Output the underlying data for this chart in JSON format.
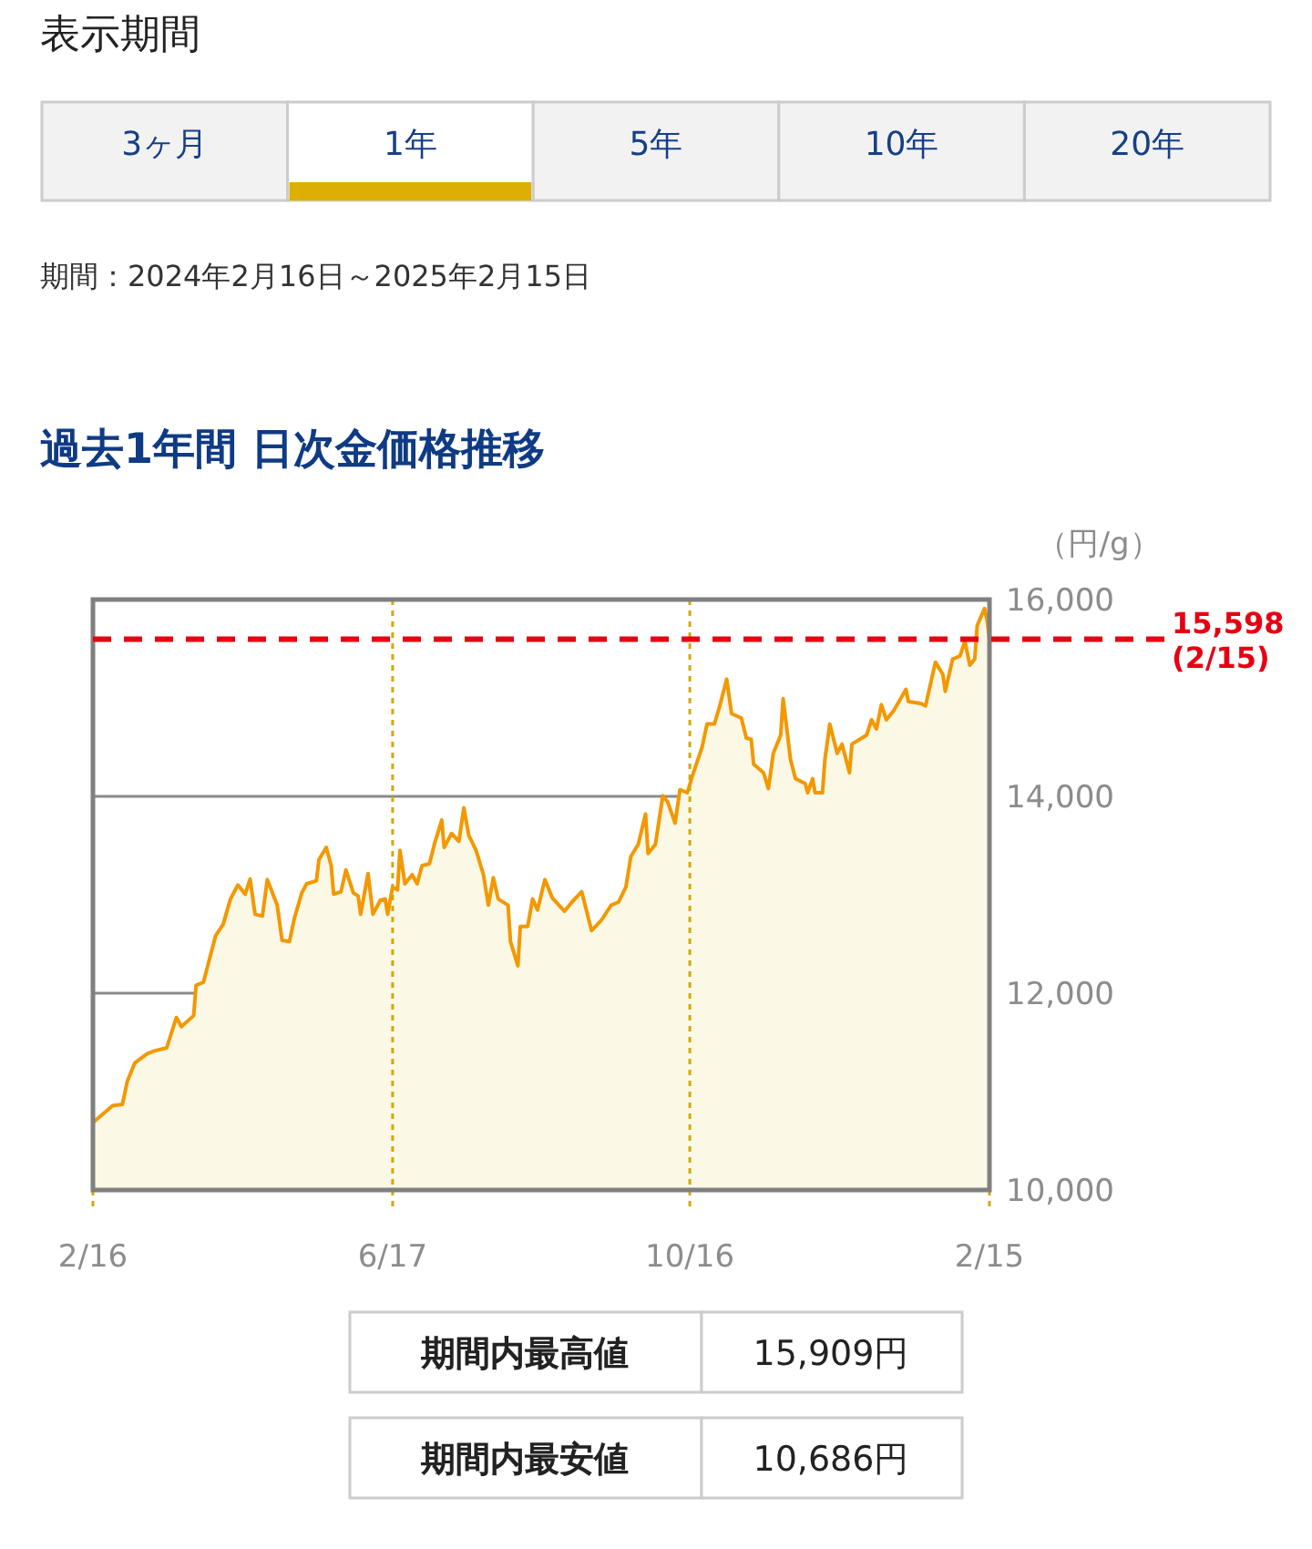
{
  "chart_data": {
    "type": "area",
    "title": "過去1年間 日次金価格推移",
    "subtitle": "期間：2024年2月16日～2025年2月15日",
    "ylabel": "（円/g）",
    "annotations": [
      "表示期間",
      "3ヶ月",
      "1年",
      "5年",
      "10年",
      "20年",
      "期間内最高値",
      "15,909円",
      "期間内最安値",
      "10,686円"
    ],
    "x": [
      "2024-02-16",
      "2024-02-24",
      "2024-02-28",
      "2024-03-01",
      "2024-03-04",
      "2024-03-09",
      "2024-03-12",
      "2024-03-17",
      "2024-03-21",
      "2024-03-23",
      "2024-03-28",
      "2024-03-29",
      "2024-04-01",
      "2024-04-04",
      "2024-04-06",
      "2024-04-09",
      "2024-04-12",
      "2024-04-15",
      "2024-04-18",
      "2024-04-20",
      "2024-04-22",
      "2024-04-25",
      "2024-04-27",
      "2024-05-01",
      "2024-05-03",
      "2024-05-06",
      "2024-05-08",
      "2024-05-11",
      "2024-05-13",
      "2024-05-17",
      "2024-05-18",
      "2024-05-21",
      "2024-05-23",
      "2024-05-24",
      "2024-05-27",
      "2024-05-29",
      "2024-06-01",
      "2024-06-03",
      "2024-06-04",
      "2024-06-07",
      "2024-06-09",
      "2024-06-12",
      "2024-06-14",
      "2024-06-15",
      "2024-06-17",
      "2024-06-19",
      "2024-06-20",
      "2024-06-22",
      "2024-06-25",
      "2024-06-27",
      "2024-06-29",
      "2024-07-02",
      "2024-07-04",
      "2024-07-07",
      "2024-07-08",
      "2024-07-11",
      "2024-07-14",
      "2024-07-16",
      "2024-07-18",
      "2024-07-21",
      "2024-07-24",
      "2024-07-26",
      "2024-07-28",
      "2024-07-30",
      "2024-08-03",
      "2024-08-04",
      "2024-08-07",
      "2024-08-08",
      "2024-08-11",
      "2024-08-13",
      "2024-08-15",
      "2024-08-18",
      "2024-08-21",
      "2024-08-26",
      "2024-08-29",
      "2024-09-02",
      "2024-09-06",
      "2024-09-10",
      "2024-09-14",
      "2024-09-17",
      "2024-09-20",
      "2024-09-22",
      "2024-09-25",
      "2024-09-28",
      "2024-09-29",
      "2024-10-02",
      "2024-10-05",
      "2024-10-07",
      "2024-10-10",
      "2024-10-12",
      "2024-10-15",
      "2024-10-17",
      "2024-10-21",
      "2024-10-23",
      "2024-10-26",
      "2024-10-28",
      "2024-10-31",
      "2024-11-02",
      "2024-11-06",
      "2024-11-08",
      "2024-11-10",
      "2024-11-11",
      "2024-11-15",
      "2024-11-17",
      "2024-11-19",
      "2024-11-22",
      "2024-11-23",
      "2024-11-26",
      "2024-11-28",
      "2024-12-02",
      "2024-12-03",
      "2024-12-05",
      "2024-12-06",
      "2024-12-09",
      "2024-12-10",
      "2024-12-12",
      "2024-12-15",
      "2024-12-17",
      "2024-12-20",
      "2024-12-21",
      "2024-12-27",
      "2024-12-29",
      "2024-12-31",
      "2025-01-02",
      "2025-01-04",
      "2025-01-07",
      "2025-01-12",
      "2025-01-13",
      "2025-01-18",
      "2025-01-20",
      "2025-01-24",
      "2025-01-27",
      "2025-01-28",
      "2025-01-31",
      "2025-02-03",
      "2025-02-05",
      "2025-02-07",
      "2025-02-09",
      "2025-02-10",
      "2025-02-13",
      "2025-02-14",
      "2025-02-15"
    ],
    "series": [
      {
        "color": "#f39800",
        "values": [
          10686,
          10857,
          10870,
          11105,
          11290,
          11383,
          11413,
          11444,
          11753,
          11660,
          11772,
          12080,
          12111,
          12400,
          12587,
          12698,
          12957,
          13099,
          13006,
          13160,
          12802,
          12784,
          13154,
          12895,
          12537,
          12525,
          12759,
          13019,
          13111,
          13142,
          13357,
          13481,
          13296,
          13006,
          13031,
          13253,
          13019,
          12987,
          12802,
          13216,
          12802,
          12944,
          12957,
          12802,
          13080,
          13050,
          13451,
          13111,
          13204,
          13111,
          13296,
          13315,
          13512,
          13759,
          13481,
          13623,
          13543,
          13883,
          13605,
          13451,
          13204,
          12895,
          13173,
          12957,
          12895,
          12525,
          12278,
          12679,
          12679,
          12957,
          12845,
          13154,
          12969,
          12833,
          12926,
          13031,
          12636,
          12741,
          12895,
          12926,
          13080,
          13389,
          13512,
          13821,
          13420,
          13512,
          14006,
          13944,
          13728,
          14068,
          14037,
          14204,
          14500,
          14735,
          14735,
          14901,
          15191,
          14840,
          14796,
          14593,
          14580,
          14327,
          14241,
          14080,
          14438,
          14623,
          14993,
          14376,
          14180,
          14130,
          14037,
          14180,
          14037,
          14037,
          14376,
          14735,
          14438,
          14531,
          14241,
          14531,
          14623,
          14778,
          14685,
          14932,
          14778,
          14870,
          15087,
          14963,
          14944,
          14920,
          15364,
          15241,
          15068,
          15395,
          15426,
          15580,
          15333,
          15395,
          15735,
          15909,
          15796,
          15598
        ]
      }
    ],
    "xlim": [
      "2024-02-16",
      "2025-02-15"
    ],
    "xticks": [
      {
        "value": "2024-02-16",
        "label": "2/16"
      },
      {
        "value": "2024-06-17",
        "label": "6/17"
      },
      {
        "value": "2024-10-16",
        "label": "10/16"
      },
      {
        "value": "2025-02-15",
        "label": "2/15"
      }
    ],
    "ylim": [
      10000,
      16000
    ],
    "yticks": [
      {
        "value": 10000,
        "label": "10,000"
      },
      {
        "value": 12000,
        "label": "12,000"
      },
      {
        "value": 14000,
        "label": "14,000"
      },
      {
        "value": 16000,
        "label": "16,000"
      }
    ],
    "ref_lines": [
      {
        "axis": "y",
        "value": 15598,
        "label": "15,598\n(2/15)",
        "color": "#e60012",
        "line_style": "dashed"
      }
    ],
    "grid": true
  }
}
